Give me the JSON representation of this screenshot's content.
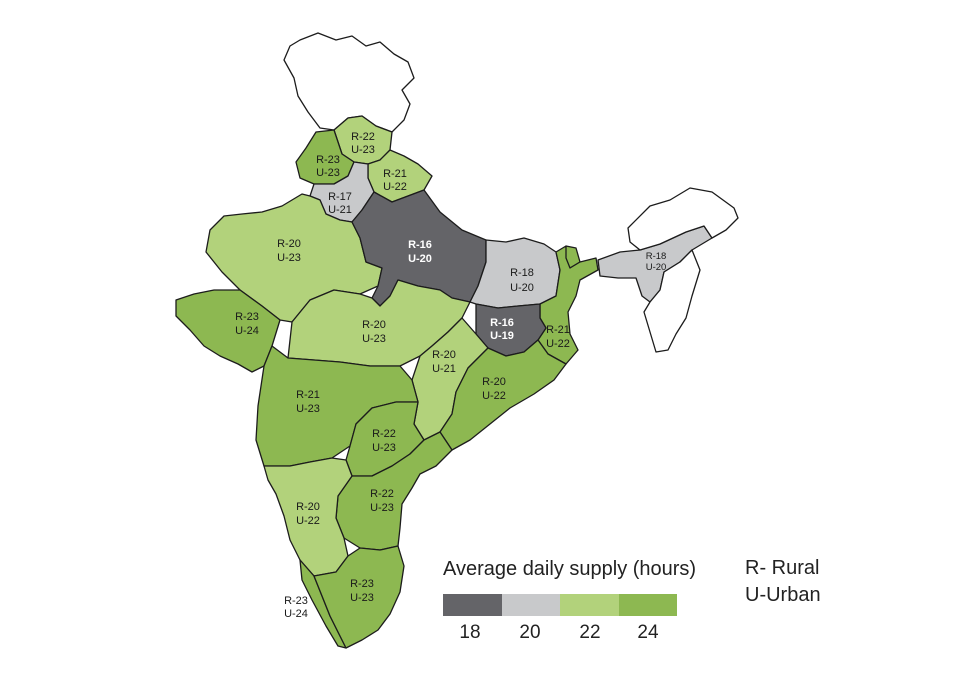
{
  "colors": {
    "18": "#646468",
    "20": "#c8c9cb",
    "22": "#b2d27b",
    "24": "#8db851",
    "nodata": "#ffffff"
  },
  "regions": [
    {
      "id": "jammu-kashmir",
      "fill": "nodata"
    },
    {
      "id": "arunachal",
      "fill": "nodata"
    },
    {
      "id": "nagaland-manipur-mizoram",
      "fill": "nodata"
    },
    {
      "id": "himachal",
      "fill": "22",
      "label": [
        "R-22",
        "U-23"
      ]
    },
    {
      "id": "punjab",
      "fill": "24",
      "label": [
        "R-23",
        "U-23"
      ]
    },
    {
      "id": "uttarakhand",
      "fill": "22",
      "label": [
        "R-21",
        "U-22"
      ]
    },
    {
      "id": "haryana",
      "fill": "20",
      "label": [
        "R-17",
        "U-21"
      ]
    },
    {
      "id": "rajasthan",
      "fill": "22",
      "label": [
        "R-20",
        "U-23"
      ]
    },
    {
      "id": "uttar-pradesh",
      "fill": "18",
      "label": [
        "R-16",
        "U-20"
      ]
    },
    {
      "id": "bihar",
      "fill": "20",
      "label": [
        "R-18",
        "U-20"
      ]
    },
    {
      "id": "assam",
      "fill": "20",
      "label": [
        "R-18",
        "U-20"
      ]
    },
    {
      "id": "sikkim",
      "fill": "24"
    },
    {
      "id": "gujarat",
      "fill": "24",
      "label": [
        "R-23",
        "U-24"
      ]
    },
    {
      "id": "madhya-pradesh",
      "fill": "22",
      "label": [
        "R-20",
        "U-23"
      ]
    },
    {
      "id": "jharkhand",
      "fill": "18",
      "label": [
        "R-16",
        "U-19"
      ]
    },
    {
      "id": "west-bengal",
      "fill": "24",
      "label": [
        "R-21",
        "U-22"
      ]
    },
    {
      "id": "chhattisgarh",
      "fill": "22",
      "label": [
        "R-20",
        "U-21"
      ]
    },
    {
      "id": "odisha",
      "fill": "24",
      "label": [
        "R-20",
        "U-22"
      ]
    },
    {
      "id": "maharashtra",
      "fill": "24",
      "label": [
        "R-21",
        "U-23"
      ]
    },
    {
      "id": "telangana",
      "fill": "24",
      "label": [
        "R-22",
        "U-23"
      ]
    },
    {
      "id": "andhra-pradesh",
      "fill": "24",
      "label": [
        "R-22",
        "U-23"
      ]
    },
    {
      "id": "karnataka",
      "fill": "22",
      "label": [
        "R-20",
        "U-22"
      ]
    },
    {
      "id": "kerala",
      "fill": "24",
      "label": [
        "R-23",
        "U-24"
      ]
    },
    {
      "id": "tamil-nadu",
      "fill": "24",
      "label": [
        "R-23",
        "U-23"
      ]
    }
  ],
  "legend": {
    "title": "Average daily supply (hours)",
    "bins": [
      {
        "value": "18",
        "color": "#646468"
      },
      {
        "value": "20",
        "color": "#c8c9cb"
      },
      {
        "value": "22",
        "color": "#b2d27b"
      },
      {
        "value": "24",
        "color": "#8db851"
      }
    ]
  },
  "key": {
    "rural": "R- Rural",
    "urban": "U-Urban"
  }
}
